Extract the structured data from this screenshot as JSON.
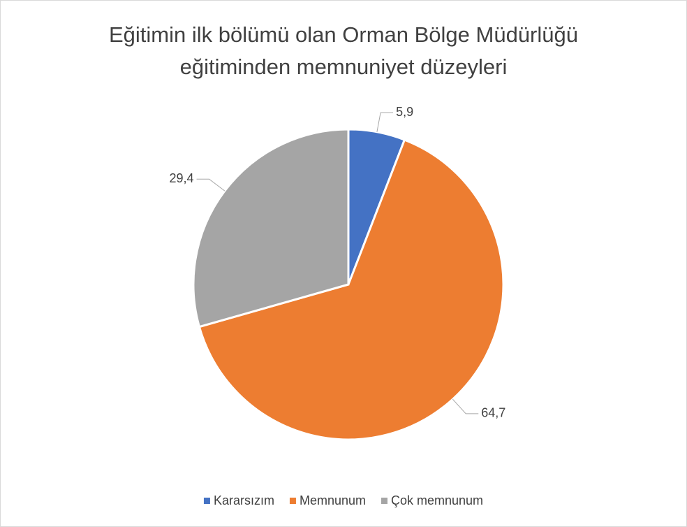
{
  "chart_data": {
    "type": "pie",
    "title": [
      "Eğitimin ilk bölümü olan Orman Bölge Müdürlüğü",
      "eğitiminden memnuniyet düzeyleri"
    ],
    "categories": [
      "Kararsızım",
      "Memnunum",
      "Çok memnunum"
    ],
    "values": [
      5.9,
      64.7,
      29.4
    ],
    "value_labels": [
      "5,9",
      "64,7",
      "29,4"
    ],
    "colors": [
      "#4472c4",
      "#ed7d31",
      "#a5a5a5"
    ],
    "legend": "bottom"
  }
}
